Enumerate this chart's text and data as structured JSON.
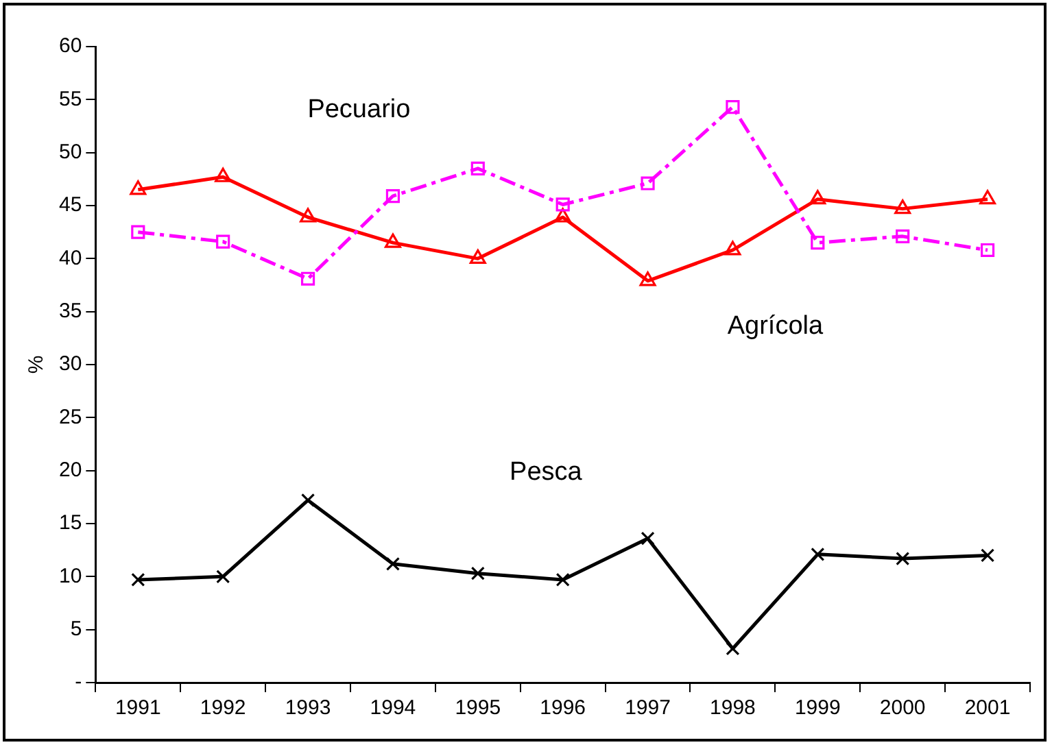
{
  "chart_data": {
    "type": "line",
    "ylabel": "%",
    "categories": [
      "1991",
      "1992",
      "1993",
      "1994",
      "1995",
      "1996",
      "1997",
      "1998",
      "1999",
      "2000",
      "2001"
    ],
    "ylim": [
      0,
      60
    ],
    "yticks": [
      {
        "value": 0,
        "label": "-"
      },
      5,
      10,
      15,
      20,
      25,
      30,
      35,
      40,
      45,
      50,
      55,
      60
    ],
    "grid": false,
    "legend": false,
    "series": [
      {
        "name": "Pecuario",
        "color": "#ff00ff",
        "marker": "square",
        "line_style": "dashed",
        "values": [
          42.5,
          41.6,
          38.1,
          45.9,
          48.5,
          45.1,
          47.1,
          54.3,
          41.5,
          42.1,
          40.8
        ]
      },
      {
        "name": "Agrícola",
        "color": "#ff0000",
        "marker": "triangle",
        "line_style": "solid",
        "values": [
          46.5,
          47.7,
          43.9,
          41.5,
          40,
          43.9,
          37.9,
          40.8,
          45.6,
          44.7,
          45.6
        ]
      },
      {
        "name": "Pesca",
        "color": "#000000",
        "marker": "cross",
        "line_style": "solid",
        "values": [
          9.7,
          10,
          17.2,
          11.2,
          10.3,
          9.7,
          13.6,
          3.2,
          12.1,
          11.7,
          12
        ]
      }
    ]
  }
}
